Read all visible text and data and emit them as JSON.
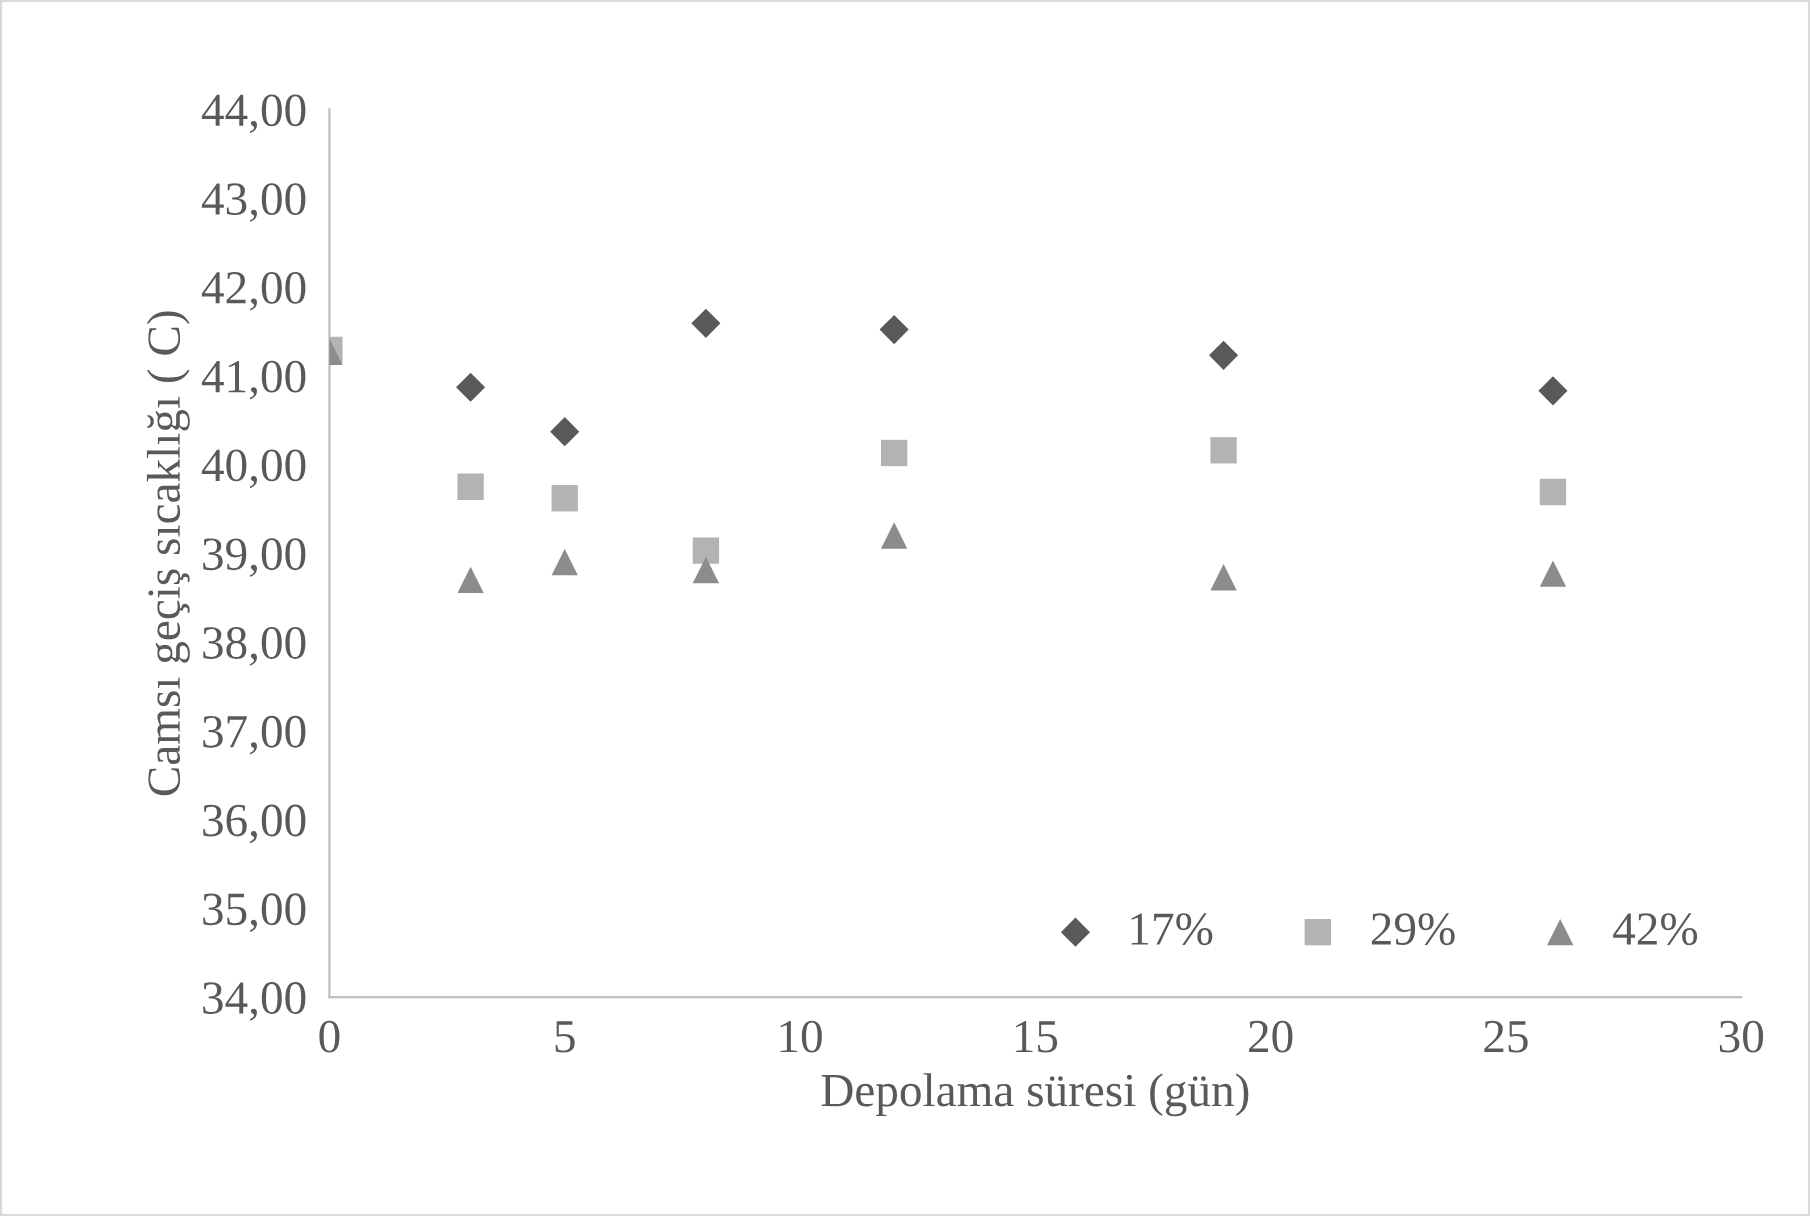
{
  "chart_data": {
    "type": "scatter",
    "xlabel": "Depolama süresi (gün)",
    "ylabel": "Camsı geçiş sıcaklığı ( C)",
    "x": [
      0,
      3,
      5,
      8,
      12,
      19,
      26
    ],
    "series": [
      {
        "name": "17%",
        "color": "#595959",
        "marker": "diamond",
        "values": [
          null,
          40.87,
          40.37,
          41.59,
          41.52,
          41.23,
          40.83
        ]
      },
      {
        "name": "29%",
        "color": "#b3b3b3",
        "marker": "square",
        "values": [
          41.29,
          39.75,
          39.62,
          39.03,
          40.13,
          40.16,
          39.69
        ]
      },
      {
        "name": "42%",
        "color": "#8c8c8c",
        "marker": "triangle",
        "values": [
          41.27,
          38.7,
          38.9,
          38.81,
          39.2,
          38.73,
          38.77
        ]
      }
    ],
    "xlim": [
      0,
      30
    ],
    "xticks": [
      0,
      5,
      10,
      15,
      20,
      25,
      30
    ],
    "ylim": [
      34,
      44
    ],
    "yticks": [
      {
        "value": 34,
        "label": "34,00"
      },
      {
        "value": 35,
        "label": "35,00"
      },
      {
        "value": 36,
        "label": "36,00"
      },
      {
        "value": 37,
        "label": "37,00"
      },
      {
        "value": 38,
        "label": "38,00"
      },
      {
        "value": 39,
        "label": "39,00"
      },
      {
        "value": 40,
        "label": "40,00"
      },
      {
        "value": 41,
        "label": "41,00"
      },
      {
        "value": 42,
        "label": "42,00"
      },
      {
        "value": 43,
        "label": "43,00"
      },
      {
        "value": 44,
        "label": "44,00"
      }
    ],
    "grid": false,
    "legend": "bottom right"
  }
}
